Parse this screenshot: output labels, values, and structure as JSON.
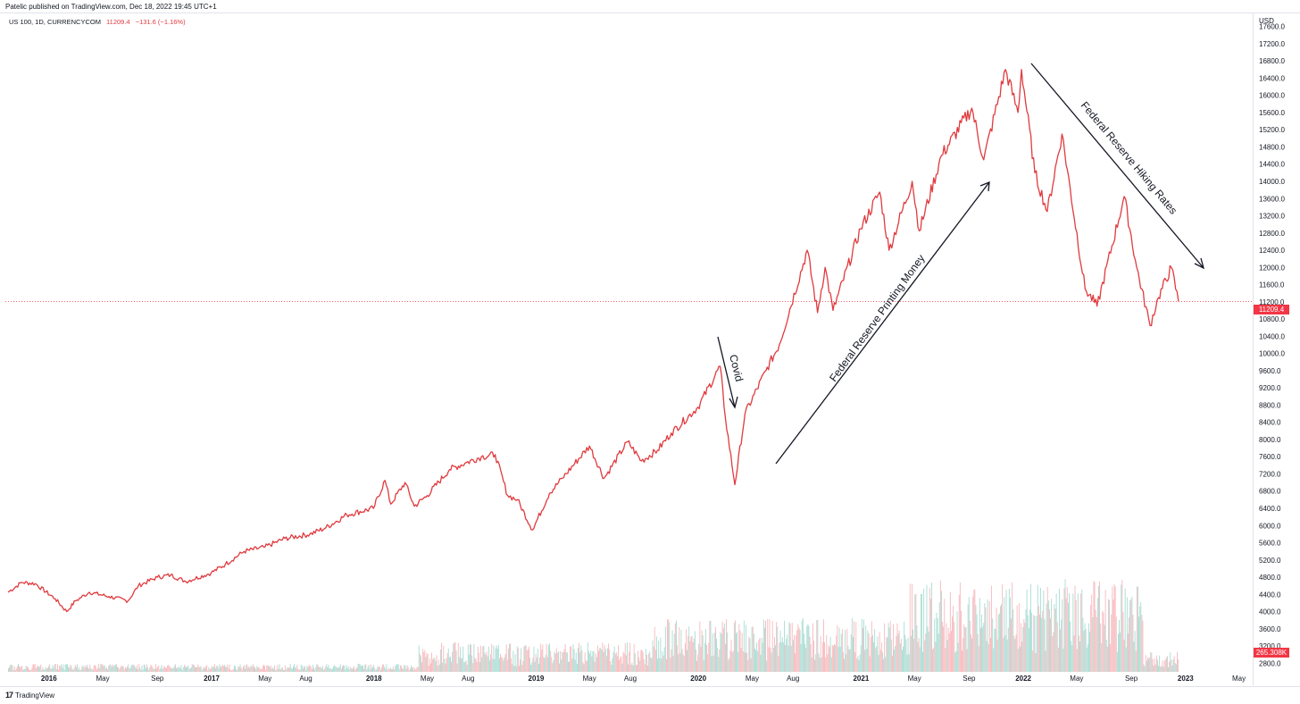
{
  "header": {
    "published": "Patelic published on TradingView.com, Dec 18, 2022 19:45 UTC+1",
    "symbol": "US 100, 1D, CURRENCYCOM",
    "last": "11209.4",
    "change": "−131.6 (−1.16%)"
  },
  "axis": {
    "currency": "USD",
    "price_label": "11209.4",
    "volume_label": "265.308K"
  },
  "footer": {
    "brand": "TradingView",
    "logo": "17"
  },
  "colors": {
    "line": "#e03a3e",
    "up_volume": "#a8dcd3",
    "down_volume": "#f7b9bd",
    "price_label_bg": "#f23645"
  },
  "annotations": [
    {
      "text": "Covid"
    },
    {
      "text": "Federal Reserve Printing Money"
    },
    {
      "text": "Federal Reserve Hiking Rates"
    }
  ],
  "chart_data": {
    "type": "line",
    "title": "",
    "ylabel": "USD",
    "ylim": [
      2600,
      17800
    ],
    "yticks": [
      2800,
      3200,
      3600,
      4000,
      4400,
      4800,
      5200,
      5600,
      6000,
      6400,
      6800,
      7200,
      7600,
      8000,
      8400,
      8800,
      9200,
      9600,
      10000,
      10400,
      10800,
      11200,
      11600,
      12000,
      12400,
      12800,
      13200,
      13600,
      14000,
      14400,
      14800,
      15200,
      15600,
      16000,
      16400,
      16800,
      17200,
      17600
    ],
    "xticks": [
      {
        "label": "2016",
        "date": "2016-01-01",
        "bold": true
      },
      {
        "label": "May",
        "date": "2016-05-01",
        "bold": false
      },
      {
        "label": "Sep",
        "date": "2016-09-01",
        "bold": false
      },
      {
        "label": "2017",
        "date": "2017-01-01",
        "bold": true
      },
      {
        "label": "May",
        "date": "2017-05-01",
        "bold": false
      },
      {
        "label": "Aug",
        "date": "2017-08-01",
        "bold": false
      },
      {
        "label": "2018",
        "date": "2018-01-01",
        "bold": true
      },
      {
        "label": "May",
        "date": "2018-05-01",
        "bold": false
      },
      {
        "label": "Aug",
        "date": "2018-08-01",
        "bold": false
      },
      {
        "label": "2019",
        "date": "2019-01-01",
        "bold": true
      },
      {
        "label": "May",
        "date": "2019-05-01",
        "bold": false
      },
      {
        "label": "Aug",
        "date": "2019-08-01",
        "bold": false
      },
      {
        "label": "2020",
        "date": "2020-01-01",
        "bold": true
      },
      {
        "label": "May",
        "date": "2020-05-01",
        "bold": false
      },
      {
        "label": "Aug",
        "date": "2020-08-01",
        "bold": false
      },
      {
        "label": "2021",
        "date": "2021-01-01",
        "bold": true
      },
      {
        "label": "May",
        "date": "2021-05-01",
        "bold": false
      },
      {
        "label": "Sep",
        "date": "2021-09-01",
        "bold": false
      },
      {
        "label": "2022",
        "date": "2022-01-01",
        "bold": true
      },
      {
        "label": "May",
        "date": "2022-05-01",
        "bold": false
      },
      {
        "label": "Sep",
        "date": "2022-09-01",
        "bold": false
      },
      {
        "label": "2023",
        "date": "2023-01-01",
        "bold": true
      },
      {
        "label": "May",
        "date": "2023-05-01",
        "bold": false
      }
    ],
    "series": [
      {
        "values": [
          [
            "2015-10-01",
            4450
          ],
          [
            "2015-11-01",
            4680
          ],
          [
            "2015-12-01",
            4650
          ],
          [
            "2016-01-15",
            4300
          ],
          [
            "2016-02-10",
            4000
          ],
          [
            "2016-03-01",
            4250
          ],
          [
            "2016-04-01",
            4450
          ],
          [
            "2016-05-15",
            4350
          ],
          [
            "2016-06-27",
            4250
          ],
          [
            "2016-07-20",
            4600
          ],
          [
            "2016-09-01",
            4800
          ],
          [
            "2016-10-01",
            4850
          ],
          [
            "2016-11-04",
            4700
          ],
          [
            "2016-12-31",
            4900
          ],
          [
            "2017-02-01",
            5100
          ],
          [
            "2017-03-15",
            5400
          ],
          [
            "2017-05-01",
            5500
          ],
          [
            "2017-06-15",
            5700
          ],
          [
            "2017-08-10",
            5800
          ],
          [
            "2017-09-15",
            5950
          ],
          [
            "2017-11-01",
            6250
          ],
          [
            "2017-12-31",
            6400
          ],
          [
            "2018-01-26",
            7050
          ],
          [
            "2018-02-08",
            6500
          ],
          [
            "2018-03-12",
            7000
          ],
          [
            "2018-04-02",
            6450
          ],
          [
            "2018-05-01",
            6700
          ],
          [
            "2018-06-20",
            7300
          ],
          [
            "2018-07-25",
            7450
          ],
          [
            "2018-08-31",
            7600
          ],
          [
            "2018-10-01",
            7650
          ],
          [
            "2018-10-29",
            6700
          ],
          [
            "2018-11-20",
            6600
          ],
          [
            "2018-12-24",
            5900
          ],
          [
            "2019-01-31",
            6750
          ],
          [
            "2019-03-01",
            7100
          ],
          [
            "2019-05-01",
            7850
          ],
          [
            "2019-06-03",
            7100
          ],
          [
            "2019-07-26",
            7950
          ],
          [
            "2019-08-26",
            7500
          ],
          [
            "2019-10-01",
            7750
          ],
          [
            "2019-11-01",
            8150
          ],
          [
            "2019-12-31",
            8750
          ],
          [
            "2020-02-19",
            9700
          ],
          [
            "2020-03-02",
            8500
          ],
          [
            "2020-03-23",
            6950
          ],
          [
            "2020-04-15",
            8600
          ],
          [
            "2020-06-01",
            9600
          ],
          [
            "2020-07-01",
            10200
          ],
          [
            "2020-09-02",
            12400
          ],
          [
            "2020-09-25",
            10950
          ],
          [
            "2020-10-12",
            12000
          ],
          [
            "2020-10-30",
            11000
          ],
          [
            "2020-12-31",
            12900
          ],
          [
            "2021-02-12",
            13750
          ],
          [
            "2021-03-05",
            12400
          ],
          [
            "2021-04-26",
            14000
          ],
          [
            "2021-05-12",
            12850
          ],
          [
            "2021-07-01",
            14600
          ],
          [
            "2021-09-07",
            15700
          ],
          [
            "2021-10-04",
            14500
          ],
          [
            "2021-11-22",
            16600
          ],
          [
            "2021-12-20",
            15600
          ],
          [
            "2021-12-28",
            16600
          ],
          [
            "2022-01-27",
            14200
          ],
          [
            "2022-02-24",
            13300
          ],
          [
            "2022-03-29",
            15100
          ],
          [
            "2022-05-20",
            11500
          ],
          [
            "2022-06-16",
            11100
          ],
          [
            "2022-08-16",
            13650
          ],
          [
            "2022-09-13",
            12000
          ],
          [
            "2022-10-13",
            10650
          ],
          [
            "2022-11-01",
            11300
          ],
          [
            "2022-11-30",
            12000
          ],
          [
            "2022-12-16",
            11209.4
          ]
        ]
      }
    ]
  }
}
